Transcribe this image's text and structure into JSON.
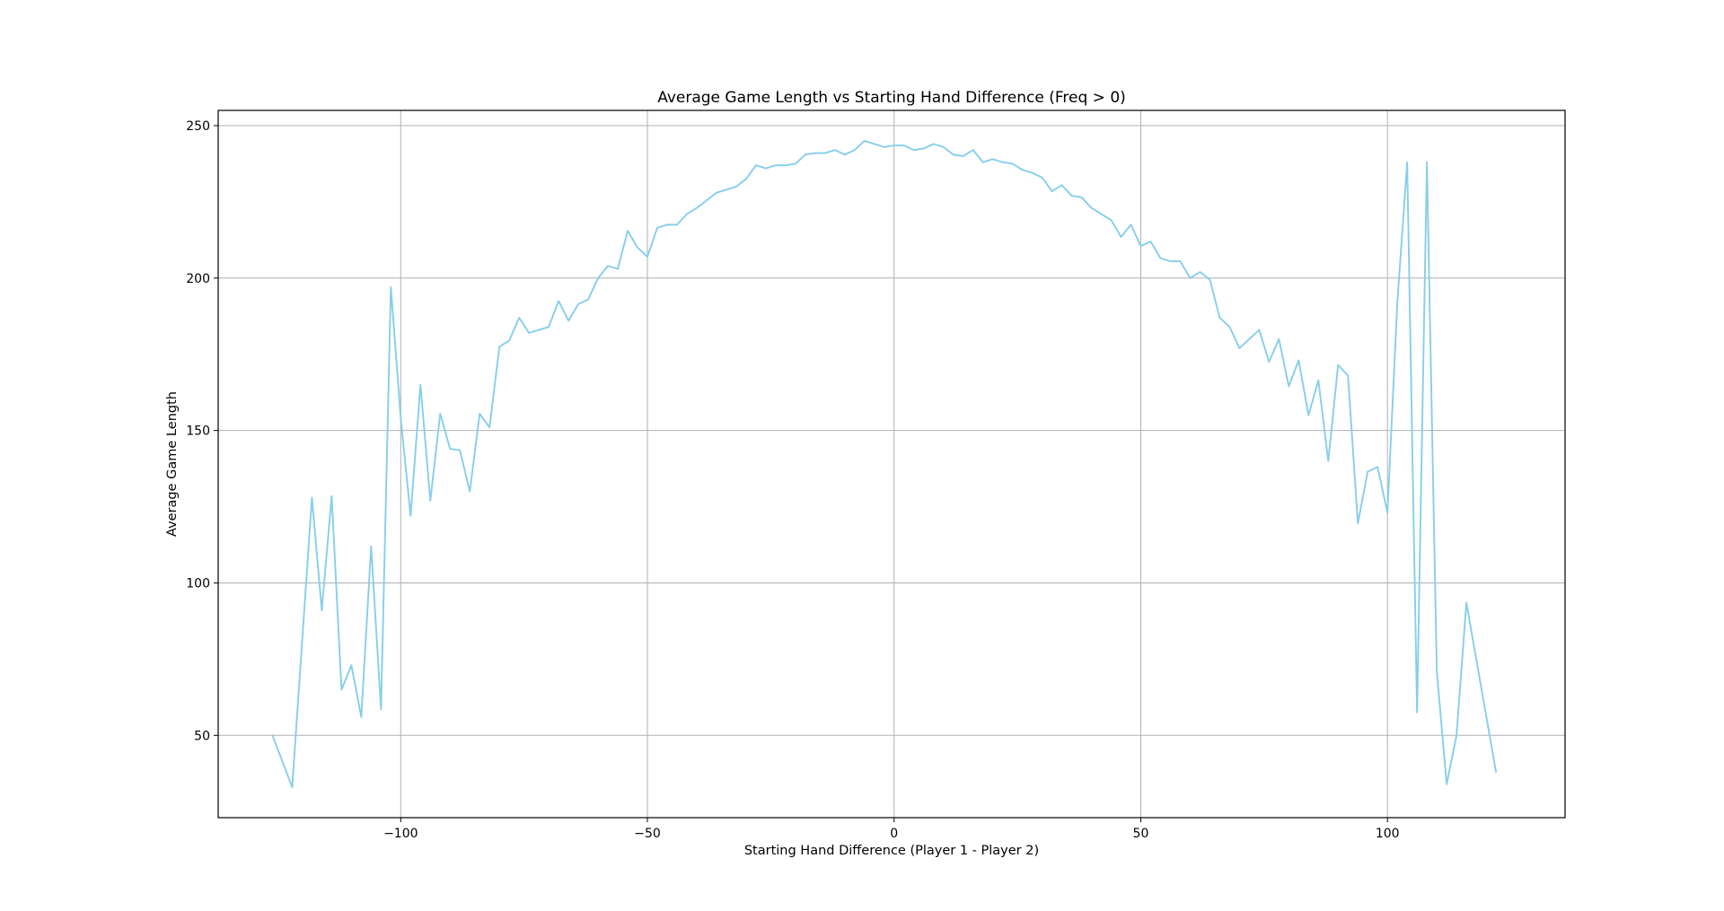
{
  "chart_data": {
    "type": "line",
    "title": "Average Game Length vs Starting Hand Difference (Freq > 0)",
    "xlabel": "Starting Hand Difference (Player 1 - Player 2)",
    "ylabel": "Average Game Length",
    "xlim": [
      -137,
      136
    ],
    "ylim": [
      23,
      255
    ],
    "xticks": [
      -100,
      -50,
      0,
      50,
      100
    ],
    "xtick_labels": [
      "−100",
      "−50",
      "0",
      "50",
      "100"
    ],
    "yticks": [
      50,
      100,
      150,
      200,
      250
    ],
    "ytick_labels": [
      "50",
      "100",
      "150",
      "200",
      "250"
    ],
    "grid": true,
    "line_color": "#87ceeb",
    "series": [
      {
        "x": [
          -126,
          -122,
          -118,
          -116,
          -114,
          -112,
          -110,
          -108,
          -106,
          -104,
          -102,
          -100,
          -98,
          -96,
          -94,
          -92,
          -90,
          -88,
          -86,
          -84,
          -82,
          -80,
          -78,
          -76,
          -74,
          -72,
          -70,
          -68,
          -66,
          -64,
          -62,
          -60,
          -58,
          -56,
          -54,
          -52,
          -50,
          -48,
          -46,
          -44,
          -42,
          -40,
          -38,
          -36,
          -34,
          -32,
          -30,
          -28,
          -26,
          -24,
          -22,
          -20,
          -18,
          -16,
          -14,
          -12,
          -10,
          -8,
          -6,
          -4,
          -2,
          0,
          2,
          4,
          6,
          8,
          10,
          12,
          14,
          16,
          18,
          20,
          22,
          24,
          26,
          28,
          30,
          32,
          34,
          36,
          38,
          40,
          42,
          44,
          46,
          48,
          50,
          52,
          54,
          56,
          58,
          60,
          62,
          64,
          66,
          68,
          70,
          72,
          74,
          76,
          78,
          80,
          82,
          84,
          86,
          88,
          90,
          92,
          94,
          96,
          98,
          100,
          102,
          104,
          106,
          108,
          110,
          112,
          114,
          116,
          122
        ],
        "y": [
          50,
          33,
          128,
          91,
          128.5,
          65,
          73,
          56,
          112,
          58.5,
          197,
          154,
          122,
          165,
          127,
          155.5,
          144,
          143.5,
          130,
          155.5,
          151,
          177.5,
          179.5,
          187,
          182,
          183,
          184,
          192.5,
          186,
          191.5,
          193,
          200,
          204,
          203,
          215.5,
          210,
          207,
          216.5,
          217.5,
          217.5,
          221,
          223,
          225.5,
          228,
          229,
          230,
          232.5,
          237,
          236,
          237,
          237,
          237.5,
          240.5,
          241,
          241,
          242,
          240.5,
          242,
          245,
          244,
          243,
          243.5,
          243.5,
          242,
          242.5,
          244,
          243,
          240.5,
          240,
          242,
          238,
          239,
          238,
          237.5,
          235.5,
          234.5,
          233,
          228.5,
          230.5,
          227,
          226.5,
          223,
          221,
          219,
          213.5,
          217.5,
          210.5,
          212,
          206.5,
          205.5,
          205.5,
          200,
          202,
          199.5,
          187,
          184,
          177,
          180,
          183,
          172.5,
          180,
          164.5,
          173,
          155,
          166.5,
          140,
          171.5,
          168,
          119.5,
          136.5,
          138,
          123,
          192,
          238,
          57.5,
          238,
          71,
          34,
          50,
          93.5,
          38
        ]
      }
    ]
  }
}
